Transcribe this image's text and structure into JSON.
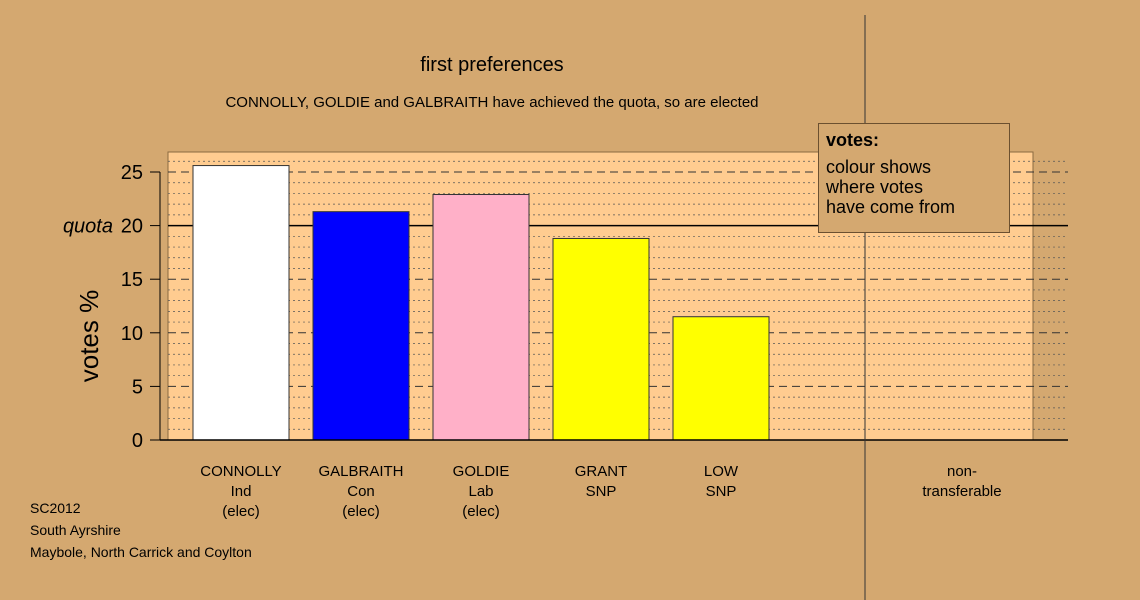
{
  "chart_data": {
    "type": "bar",
    "title": "first preferences",
    "subtitle": "CONNOLLY, GOLDIE and GALBRAITH have achieved the quota, so are elected",
    "ylabel": "votes %",
    "ylim": [
      0,
      27
    ],
    "yticks": [
      0,
      5,
      10,
      15,
      20,
      25
    ],
    "quota": 20,
    "quota_label": "quota",
    "categories": [
      {
        "name": "CONNOLLY",
        "party": "Ind",
        "status": "(elec)"
      },
      {
        "name": "GALBRAITH",
        "party": "Con",
        "status": "(elec)"
      },
      {
        "name": "GOLDIE",
        "party": "Lab",
        "status": "(elec)"
      },
      {
        "name": "GRANT",
        "party": "SNP",
        "status": ""
      },
      {
        "name": "LOW",
        "party": "SNP",
        "status": ""
      }
    ],
    "values": [
      25.6,
      21.3,
      22.9,
      18.8,
      11.5
    ],
    "colors": [
      "#ffffff",
      "#0000ff",
      "#ffb0c8",
      "#ffff00",
      "#ffff00"
    ],
    "nontransferable_label": [
      "non-",
      "transferable"
    ],
    "grid": true,
    "plot_bg": "#ffcc90",
    "legend": {
      "title": "votes:",
      "body": "colour shows\nwhere votes\nhave come from",
      "position": "top-right"
    }
  },
  "footer": {
    "line1": "SC2012",
    "line2": "South Ayrshire",
    "line3": "Maybole, North Carrick and Coylton"
  }
}
